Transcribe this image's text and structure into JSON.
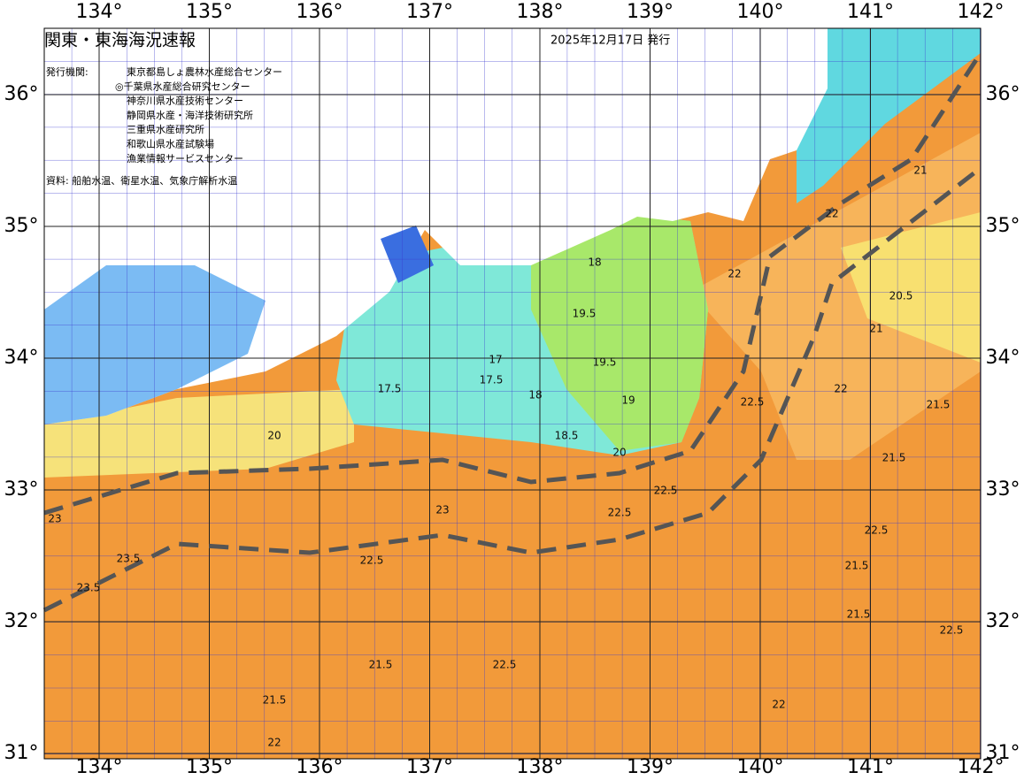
{
  "header": {
    "title": "関東・東海海況速報",
    "date": "2025年12月17日 発行",
    "issuer_label": "発行機関:",
    "issuers": [
      "東京都島しょ農林水産総合センター",
      "◎千葉県水産総合研究センター",
      "神奈川県水産技術センター",
      "静岡県水産・海洋技術研究所",
      "三重県水産研究所",
      "和歌山県水産試験場",
      "漁業情報サービスセンター"
    ],
    "source": "資料: 船舶水温、衛星水温、気象庁解析水温"
  },
  "axes": {
    "lon": [
      {
        "value": 134,
        "label": "134°"
      },
      {
        "value": 135,
        "label": "135°"
      },
      {
        "value": 136,
        "label": "136°"
      },
      {
        "value": 137,
        "label": "137°"
      },
      {
        "value": 138,
        "label": "138°"
      },
      {
        "value": 139,
        "label": "139°"
      },
      {
        "value": 140,
        "label": "140°"
      },
      {
        "value": 141,
        "label": "141°"
      },
      {
        "value": 142,
        "label": "142°"
      }
    ],
    "lat": [
      {
        "value": 36,
        "label": "36°"
      },
      {
        "value": 35,
        "label": "35°"
      },
      {
        "value": 34,
        "label": "34°"
      },
      {
        "value": 33,
        "label": "33°"
      },
      {
        "value": 32,
        "label": "32°"
      },
      {
        "value": 31,
        "label": "31°"
      }
    ]
  },
  "contour_labels": [
    17.5,
    18,
    19.5,
    19,
    20.5,
    21,
    21.5,
    21.5,
    22,
    22.5,
    22.5,
    23,
    23.5,
    23.5,
    22.5,
    22.5,
    21.5,
    21.5,
    22,
    22,
    22.5,
    21.5,
    18.5,
    17.5,
    20,
    22,
    21,
    22,
    22.5,
    18,
    17,
    19.5,
    21.5,
    22.5,
    23,
    20
  ]
}
